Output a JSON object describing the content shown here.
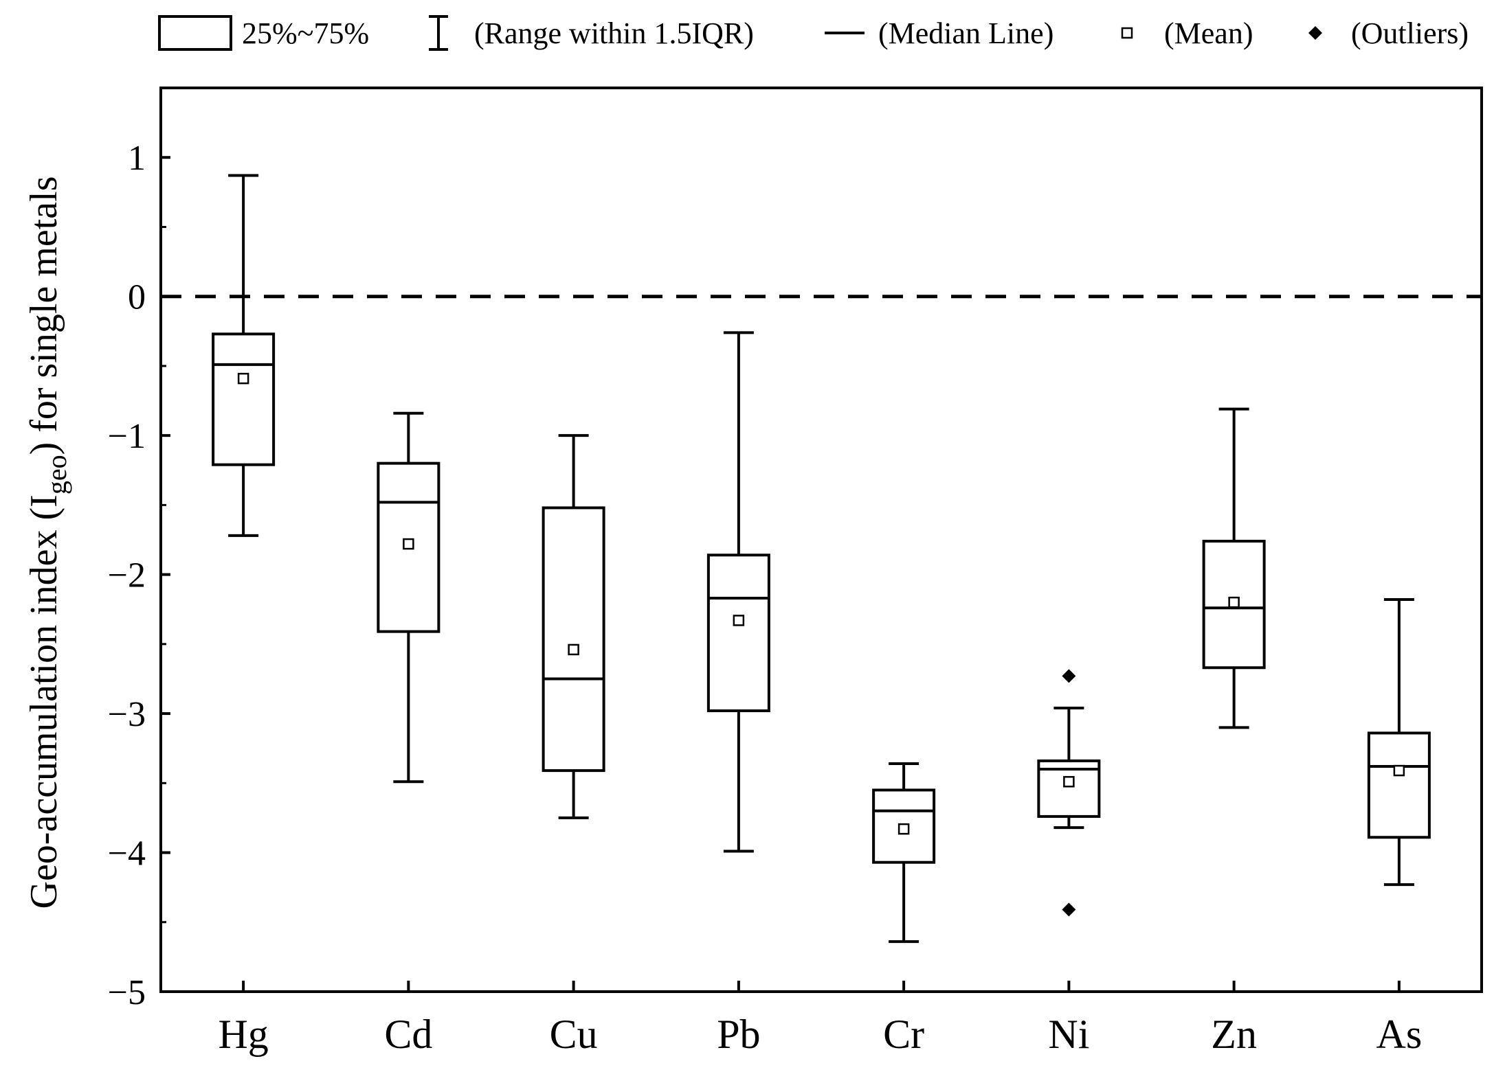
{
  "chart_data": {
    "type": "box",
    "title": "",
    "xlabel": "",
    "ylabel": {
      "main": "Geo-accumulation index (I",
      "sub": "geo",
      "tail": ") for single metals"
    },
    "ylim": [
      -5,
      1.5
    ],
    "yticks": [
      1,
      0,
      -1,
      -2,
      -3,
      -4,
      -5
    ],
    "ytick_labels": [
      "1",
      "0",
      "−1",
      "−2",
      "−3",
      "−4",
      "−5"
    ],
    "reference_line": {
      "y": 0,
      "style": "dashed"
    },
    "categories": [
      "Hg",
      "Cd",
      "Cu",
      "Pb",
      "Cr",
      "Ni",
      "Zn",
      "As"
    ],
    "boxes": [
      {
        "name": "Hg",
        "whisker_low": -1.72,
        "q1": -1.21,
        "median": -0.49,
        "q3": -0.27,
        "whisker_high": 0.87,
        "mean": -0.59,
        "outliers": []
      },
      {
        "name": "Cd",
        "whisker_low": -3.49,
        "q1": -2.41,
        "median": -1.48,
        "q3": -1.2,
        "whisker_high": -0.84,
        "mean": -1.78,
        "outliers": []
      },
      {
        "name": "Cu",
        "whisker_low": -3.75,
        "q1": -3.41,
        "median": -2.75,
        "q3": -1.52,
        "whisker_high": -1.0,
        "mean": -2.54,
        "outliers": []
      },
      {
        "name": "Pb",
        "whisker_low": -3.99,
        "q1": -2.98,
        "median": -2.17,
        "q3": -1.86,
        "whisker_high": -0.26,
        "mean": -2.33,
        "outliers": []
      },
      {
        "name": "Cr",
        "whisker_low": -4.64,
        "q1": -4.07,
        "median": -3.7,
        "q3": -3.55,
        "whisker_high": -3.36,
        "mean": -3.83,
        "outliers": []
      },
      {
        "name": "Ni",
        "whisker_low": -3.82,
        "q1": -3.74,
        "median": -3.4,
        "q3": -3.34,
        "whisker_high": -2.96,
        "mean": -3.49,
        "outliers": [
          -2.73,
          -4.41
        ]
      },
      {
        "name": "Zn",
        "whisker_low": -3.1,
        "q1": -2.67,
        "median": -2.24,
        "q3": -1.76,
        "whisker_high": -0.81,
        "mean": -2.2,
        "outliers": []
      },
      {
        "name": "As",
        "whisker_low": -4.23,
        "q1": -3.89,
        "median": -3.38,
        "q3": -3.14,
        "whisker_high": -2.18,
        "mean": -3.41,
        "outliers": []
      }
    ],
    "legend": {
      "position": "top",
      "items": [
        {
          "symbol": "box",
          "label": "25%~75%"
        },
        {
          "symbol": "whisker",
          "label": "(Range within 1.5IQR)"
        },
        {
          "symbol": "median",
          "label": "(Median Line)"
        },
        {
          "symbol": "mean",
          "label": "(Mean)"
        },
        {
          "symbol": "outlier",
          "label": "(Outliers)"
        }
      ]
    }
  }
}
